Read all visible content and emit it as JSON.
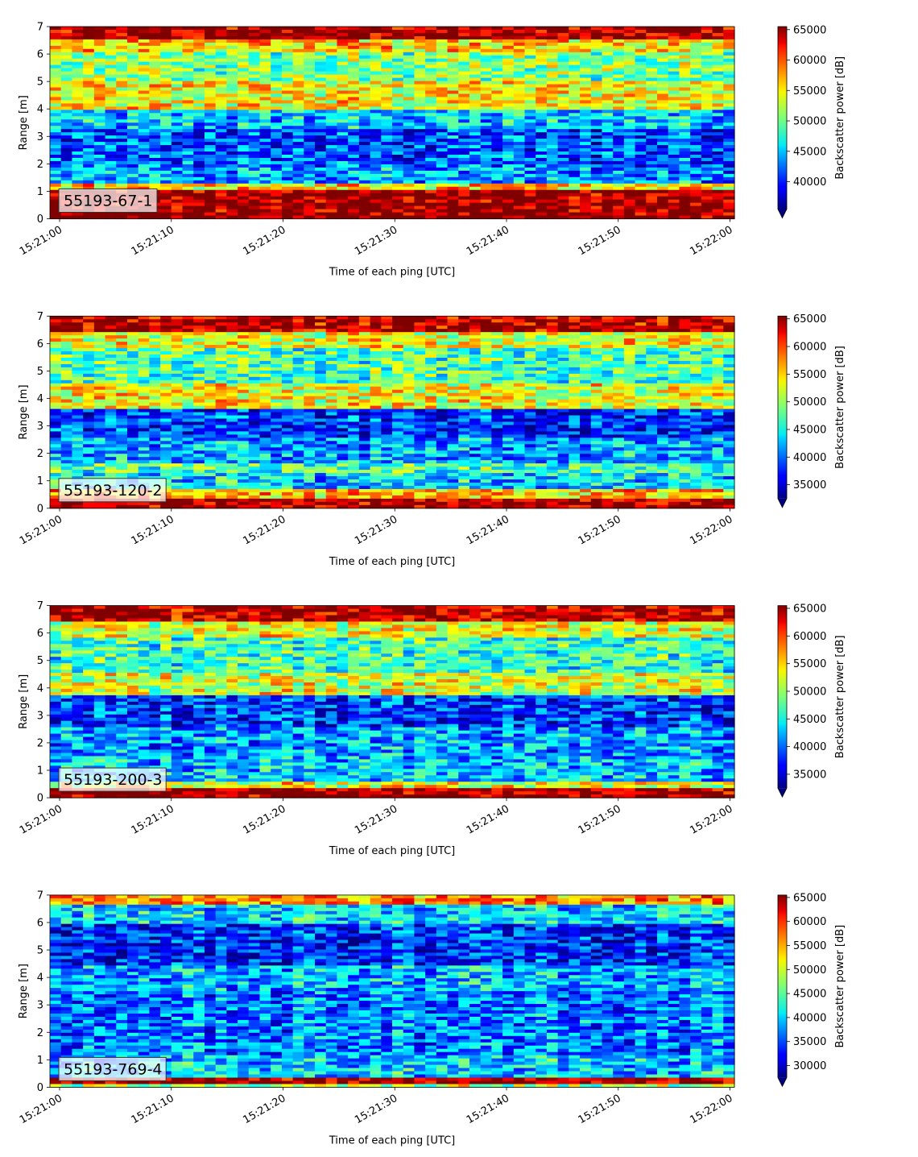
{
  "chart_data": [
    {
      "type": "heatmap",
      "label": "55193-67-1",
      "xlabel": "Time of each ping [UTC]",
      "ylabel": "Range [m]",
      "x_ticks": [
        "15:21:00",
        "15:21:10",
        "15:21:20",
        "15:21:30",
        "15:21:40",
        "15:21:50",
        "15:22:00"
      ],
      "y_ticks": [
        0,
        1,
        2,
        3,
        4,
        5,
        6,
        7
      ],
      "x_range": [
        "15:21:00",
        "15:22:00"
      ],
      "y_range": [
        0,
        7
      ],
      "colorbar": {
        "label": "Backscatter power [dB]",
        "ticks": [
          40000,
          45000,
          50000,
          55000,
          60000,
          65000
        ],
        "range": [
          35500,
          65500
        ],
        "extend": "min",
        "colormap": "jet"
      },
      "bands": [
        {
          "y0": 0.0,
          "y1": 0.25,
          "level": 1.0
        },
        {
          "y0": 0.25,
          "y1": 1.1,
          "level": 0.98
        },
        {
          "y0": 1.1,
          "y1": 1.3,
          "level": 0.65
        },
        {
          "y0": 1.3,
          "y1": 1.9,
          "level": 0.28
        },
        {
          "y0": 1.9,
          "y1": 2.5,
          "level": 0.22
        },
        {
          "y0": 2.5,
          "y1": 3.3,
          "level": 0.2
        },
        {
          "y0": 3.3,
          "y1": 4.0,
          "level": 0.32
        },
        {
          "y0": 4.0,
          "y1": 5.0,
          "level": 0.62
        },
        {
          "y0": 5.0,
          "y1": 6.1,
          "level": 0.5
        },
        {
          "y0": 6.1,
          "y1": 6.5,
          "level": 0.66
        },
        {
          "y0": 6.5,
          "y1": 7.0,
          "level": 0.96
        }
      ]
    },
    {
      "type": "heatmap",
      "label": "55193-120-2",
      "xlabel": "Time of each ping [UTC]",
      "ylabel": "Range [m]",
      "x_ticks": [
        "15:21:00",
        "15:21:10",
        "15:21:20",
        "15:21:30",
        "15:21:40",
        "15:21:50",
        "15:22:00"
      ],
      "y_ticks": [
        0,
        1,
        2,
        3,
        4,
        5,
        6,
        7
      ],
      "x_range": [
        "15:21:00",
        "15:22:00"
      ],
      "y_range": [
        0,
        7
      ],
      "colorbar": {
        "label": "Backscatter power [dB]",
        "ticks": [
          35000,
          40000,
          45000,
          50000,
          55000,
          60000,
          65000
        ],
        "range": [
          32500,
          65500
        ],
        "extend": "min",
        "colormap": "jet"
      },
      "bands": [
        {
          "y0": 0.0,
          "y1": 0.4,
          "level": 0.98
        },
        {
          "y0": 0.4,
          "y1": 0.7,
          "level": 0.7
        },
        {
          "y0": 0.7,
          "y1": 1.3,
          "level": 0.35
        },
        {
          "y0": 1.3,
          "y1": 1.6,
          "level": 0.45
        },
        {
          "y0": 1.6,
          "y1": 2.6,
          "level": 0.3
        },
        {
          "y0": 2.6,
          "y1": 3.6,
          "level": 0.18
        },
        {
          "y0": 3.6,
          "y1": 4.5,
          "level": 0.62
        },
        {
          "y0": 4.5,
          "y1": 5.8,
          "level": 0.45
        },
        {
          "y0": 5.8,
          "y1": 6.4,
          "level": 0.62
        },
        {
          "y0": 6.4,
          "y1": 7.0,
          "level": 0.95
        }
      ]
    },
    {
      "type": "heatmap",
      "label": "55193-200-3",
      "xlabel": "Time of each ping [UTC]",
      "ylabel": "Range [m]",
      "x_ticks": [
        "15:21:00",
        "15:21:10",
        "15:21:20",
        "15:21:30",
        "15:21:40",
        "15:21:50",
        "15:22:00"
      ],
      "y_ticks": [
        0,
        1,
        2,
        3,
        4,
        5,
        6,
        7
      ],
      "x_range": [
        "15:21:00",
        "15:22:00"
      ],
      "y_range": [
        0,
        7
      ],
      "colorbar": {
        "label": "Backscatter power [dB]",
        "ticks": [
          35000,
          40000,
          45000,
          50000,
          55000,
          60000,
          65000
        ],
        "range": [
          32500,
          65500
        ],
        "extend": "min",
        "colormap": "jet"
      },
      "bands": [
        {
          "y0": 0.0,
          "y1": 0.35,
          "level": 0.98
        },
        {
          "y0": 0.35,
          "y1": 0.6,
          "level": 0.6
        },
        {
          "y0": 0.6,
          "y1": 1.4,
          "level": 0.32
        },
        {
          "y0": 1.4,
          "y1": 2.6,
          "level": 0.28
        },
        {
          "y0": 2.6,
          "y1": 3.7,
          "level": 0.17
        },
        {
          "y0": 3.7,
          "y1": 4.5,
          "level": 0.58
        },
        {
          "y0": 4.5,
          "y1": 5.8,
          "level": 0.42
        },
        {
          "y0": 5.8,
          "y1": 6.4,
          "level": 0.6
        },
        {
          "y0": 6.4,
          "y1": 7.0,
          "level": 0.95
        }
      ]
    },
    {
      "type": "heatmap",
      "label": "55193-769-4",
      "xlabel": "Time of each ping [UTC]",
      "ylabel": "Range [m]",
      "x_ticks": [
        "15:21:00",
        "15:21:10",
        "15:21:20",
        "15:21:30",
        "15:21:40",
        "15:21:50",
        "15:22:00"
      ],
      "y_ticks": [
        0,
        1,
        2,
        3,
        4,
        5,
        6,
        7
      ],
      "x_range": [
        "15:21:00",
        "15:22:00"
      ],
      "y_range": [
        0,
        7
      ],
      "colorbar": {
        "label": "Backscatter power [dB]",
        "ticks": [
          30000,
          35000,
          40000,
          45000,
          50000,
          55000,
          60000,
          65000
        ],
        "range": [
          27500,
          65500
        ],
        "extend": "min",
        "colormap": "jet"
      },
      "bands": [
        {
          "y0": 0.0,
          "y1": 0.15,
          "level": 0.55
        },
        {
          "y0": 0.15,
          "y1": 0.32,
          "level": 0.98
        },
        {
          "y0": 0.32,
          "y1": 1.2,
          "level": 0.33
        },
        {
          "y0": 1.2,
          "y1": 3.5,
          "level": 0.25
        },
        {
          "y0": 3.5,
          "y1": 4.4,
          "level": 0.3
        },
        {
          "y0": 4.4,
          "y1": 6.0,
          "level": 0.17
        },
        {
          "y0": 6.0,
          "y1": 6.6,
          "level": 0.35
        },
        {
          "y0": 6.6,
          "y1": 7.0,
          "level": 0.75
        }
      ]
    }
  ]
}
